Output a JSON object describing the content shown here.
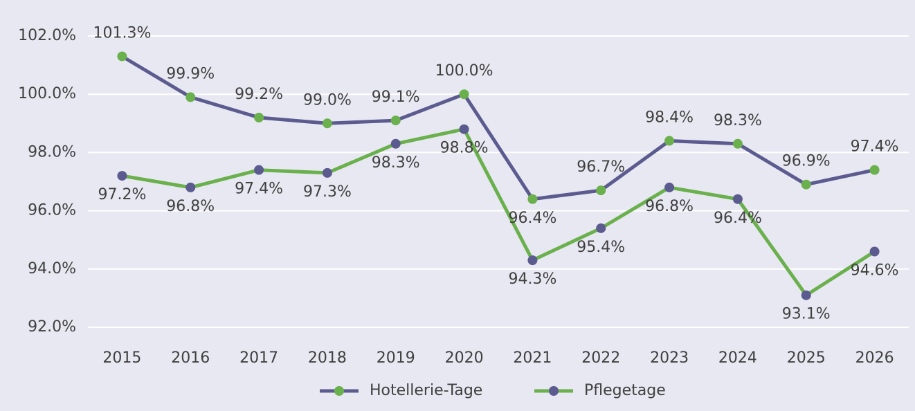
{
  "chart_data": {
    "type": "line",
    "categories": [
      "2015",
      "2016",
      "2017",
      "2018",
      "2019",
      "2020",
      "2021",
      "2022",
      "2023",
      "2024",
      "2025",
      "2026"
    ],
    "series": [
      {
        "name": "Hotellerie-Tage",
        "color": "#5b5b8f",
        "marker_color": "#6ab04c",
        "values": [
          101.3,
          99.9,
          99.2,
          99.0,
          99.1,
          100.0,
          96.4,
          96.7,
          98.4,
          98.3,
          96.9,
          97.4
        ],
        "value_labels": [
          "101.3%",
          "99.9%",
          "99.2%",
          "99.0%",
          "99.1%",
          "100.0%",
          "96.4%",
          "96.7%",
          "98.4%",
          "98.3%",
          "96.9%",
          "97.4%"
        ]
      },
      {
        "name": "Pflegetage",
        "color": "#6ab04c",
        "marker_color": "#5b5b8f",
        "values": [
          97.2,
          96.8,
          97.4,
          97.3,
          98.3,
          98.8,
          94.3,
          95.4,
          96.8,
          96.4,
          93.1,
          94.6
        ],
        "value_labels": [
          "97.2%",
          "96.8%",
          "97.4%",
          "97.3%",
          "98.3%",
          "98.8%",
          "94.3%",
          "95.4%",
          "96.8%",
          "96.4%",
          "93.1%",
          "94.6%"
        ]
      }
    ],
    "ylim": [
      92,
      102
    ],
    "yticks": [
      {
        "value": 92,
        "label": "92.0%"
      },
      {
        "value": 94,
        "label": "94.0%"
      },
      {
        "value": 96,
        "label": "96.0%"
      },
      {
        "value": 98,
        "label": "98.0%"
      },
      {
        "value": 100,
        "label": "100.0%"
      },
      {
        "value": 102,
        "label": "102.0%"
      }
    ],
    "grid": true,
    "legend": "bottom"
  }
}
